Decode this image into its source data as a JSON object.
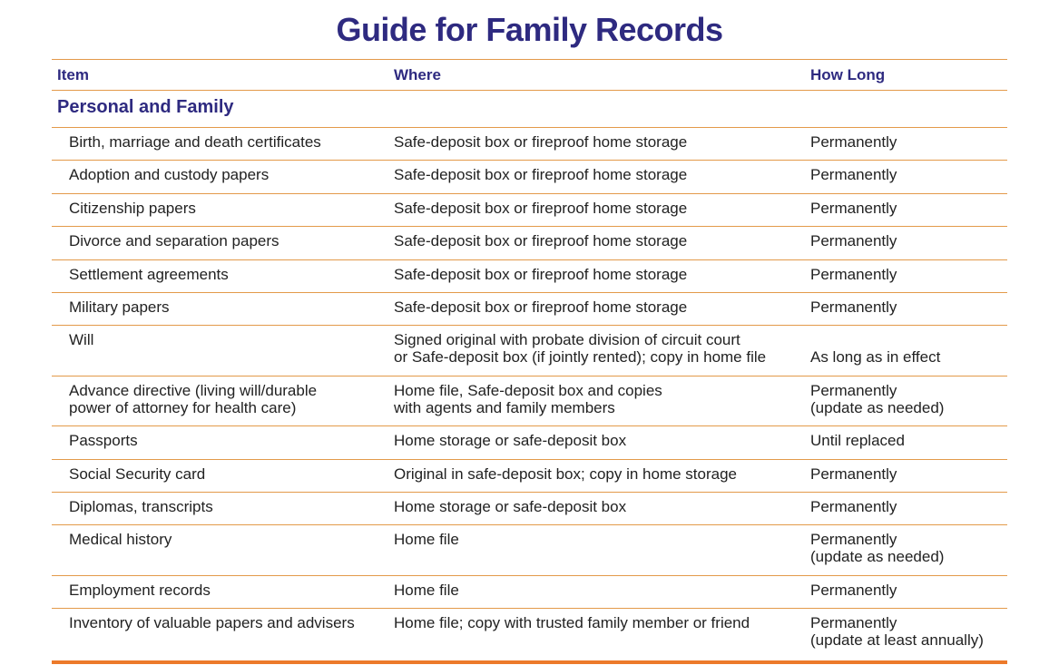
{
  "header": {
    "title": "Guide for Family Records"
  },
  "table": {
    "columns": [
      "Item",
      "Where",
      "How Long"
    ],
    "section": "Personal and Family",
    "rows": [
      [
        [
          "Birth, marriage and death certificates"
        ],
        [
          "Safe-deposit box or fireproof home storage"
        ],
        [
          "Permanently"
        ]
      ],
      [
        [
          "Adoption and custody papers"
        ],
        [
          "Safe-deposit box or fireproof home storage"
        ],
        [
          "Permanently"
        ]
      ],
      [
        [
          "Citizenship papers"
        ],
        [
          "Safe-deposit box or fireproof home storage"
        ],
        [
          "Permanently"
        ]
      ],
      [
        [
          "Divorce and separation papers"
        ],
        [
          "Safe-deposit box or fireproof home storage"
        ],
        [
          "Permanently"
        ]
      ],
      [
        [
          "Settlement agreements"
        ],
        [
          "Safe-deposit box or fireproof home storage"
        ],
        [
          "Permanently"
        ]
      ],
      [
        [
          "Military papers"
        ],
        [
          "Safe-deposit box or fireproof home storage"
        ],
        [
          "Permanently"
        ]
      ],
      [
        [
          "Will"
        ],
        [
          "Signed original with probate division of circuit court",
          "or Safe-deposit box (if jointly rented); copy in home file"
        ],
        [
          "As long as in effect"
        ]
      ],
      [
        [
          "Advance directive (living will/durable",
          "power of attorney for health care)"
        ],
        [
          "Home file, Safe-deposit box and copies",
          "with agents and family members"
        ],
        [
          "Permanently",
          "(update as needed)"
        ]
      ],
      [
        [
          "Passports"
        ],
        [
          "Home storage or safe-deposit box"
        ],
        [
          "Until replaced"
        ]
      ],
      [
        [
          "Social Security card"
        ],
        [
          "Original in safe-deposit box; copy in home storage"
        ],
        [
          "Permanently"
        ]
      ],
      [
        [
          "Diplomas, transcripts"
        ],
        [
          "Home storage or safe-deposit box"
        ],
        [
          "Permanently"
        ]
      ],
      [
        [
          "Medical history"
        ],
        [
          "Home file"
        ],
        [
          "Permanently",
          "(update as needed)"
        ]
      ],
      [
        [
          "Employment records"
        ],
        [
          "Home file"
        ],
        [
          "Permanently"
        ]
      ],
      [
        [
          "Inventory of valuable papers and advisers"
        ],
        [
          "Home file; copy with trusted family member or friend"
        ],
        [
          "Permanently",
          "(update at least annually)"
        ]
      ]
    ]
  }
}
